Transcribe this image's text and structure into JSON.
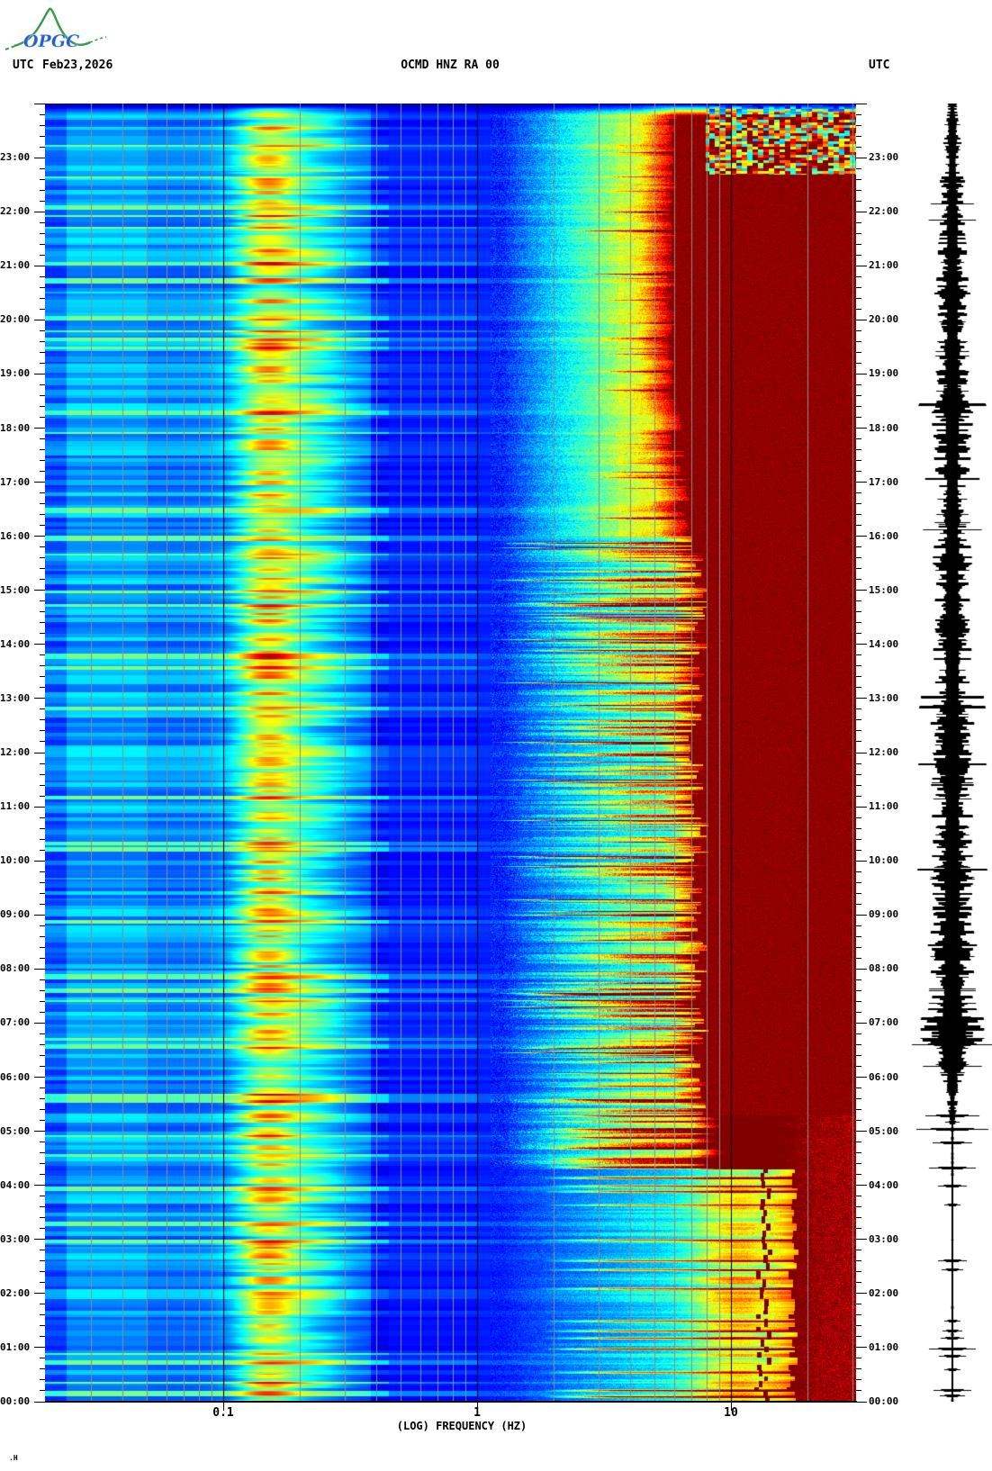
{
  "header": {
    "logo_text": "OPGC",
    "utc_left": "UTC",
    "date": "Feb23,2026",
    "title": "OCMD HNZ RA 00",
    "utc_right": "UTC"
  },
  "footer": {
    "mark": ".H"
  },
  "axes": {
    "x": {
      "label": "(LOG) FREQUENCY (HZ)",
      "ticks": [
        {
          "value": 0.1,
          "label": "0.1"
        },
        {
          "value": 1,
          "label": "1"
        },
        {
          "value": 10,
          "label": "10"
        }
      ]
    },
    "y": {
      "unit": "UTC",
      "hour_labels": [
        "00:00",
        "01:00",
        "02:00",
        "03:00",
        "04:00",
        "05:00",
        "06:00",
        "07:00",
        "08:00",
        "09:00",
        "10:00",
        "11:00",
        "12:00",
        "13:00",
        "14:00",
        "15:00",
        "16:00",
        "17:00",
        "18:00",
        "19:00",
        "20:00",
        "21:00",
        "22:00",
        "23:00"
      ],
      "minor_ticks_per_hour": 5
    }
  },
  "chart_data": {
    "type": "heatmap",
    "title": "OCMD HNZ RA 00",
    "date_utc": "Feb23,2026",
    "x_axis": {
      "label": "(LOG) FREQUENCY (HZ)",
      "scale": "log",
      "tick_values_hz": [
        0.1,
        1,
        10
      ],
      "range_hz": [
        0.02,
        31
      ],
      "minor_gridline_multiples": [
        2,
        3,
        4,
        5,
        6,
        7,
        8,
        9
      ],
      "major_gridlines_hz": [
        0.1,
        1,
        10
      ]
    },
    "y_axis": {
      "label": "UTC",
      "range_hours": [
        0,
        24
      ],
      "tick_interval_minutes": 60,
      "minor_tick_minutes": 12,
      "direction": "time increases downward-to-top (00:00 bottom, 24:00 top)"
    },
    "colormap": "jet",
    "colors": {
      "background": "#ffffff",
      "text": "#000000",
      "minor_grid": "#8c8c8c",
      "major_grid": "#000000",
      "waveform": "#000000",
      "saturated_red": "#940000",
      "logo_green": "#3a9a4a",
      "logo_blue": "#2b5bc8"
    },
    "features": {
      "low_band_hz": [
        0.02,
        0.1
      ],
      "microseism_peak_hz": 0.15,
      "secondary_peak_hz": 0.22,
      "quiet_valley_hz": [
        0.45,
        1.3
      ],
      "tremor_band_hz": [
        1.3,
        8
      ],
      "persistent_spectral_line_hz": 3.7,
      "night_cyan_band_hz": [
        8,
        13
      ],
      "night_red_wiggly_line_hz": 13.5,
      "saturation_edge_hz": {
        "night_00_04": 17,
        "dawn_04_05": 9.3,
        "day_05_16": 7.4,
        "evening_16_24": 5.8
      },
      "regimes": [
        {
          "utc": [
            0,
            4.3
          ],
          "desc": "quiet background with discrete events"
        },
        {
          "utc": [
            4.3,
            6
          ],
          "desc": "event swarm onset, mixed colors"
        },
        {
          "utc": [
            6,
            16
          ],
          "desc": "bursty tremor streaks 1.5-8 Hz, saturated above ~7.5 Hz"
        },
        {
          "utc": [
            16,
            24
          ],
          "desc": "continuous strong tremor, saturated above ~6 Hz, mottled top right"
        }
      ],
      "events_utc": {
        "night": [
          [
            0.1,
            1.0
          ],
          [
            0.22,
            0.9
          ],
          [
            0.55,
            0.6
          ],
          [
            0.98,
            0.95
          ],
          [
            1.18,
            0.7
          ],
          [
            1.32,
            0.7
          ],
          [
            1.5,
            0.6
          ],
          [
            2.1,
            0.55
          ],
          [
            2.45,
            0.6
          ],
          [
            2.62,
            0.7
          ],
          [
            3.0,
            0.6
          ],
          [
            3.65,
            0.5
          ],
          [
            3.9,
            0.6
          ],
          [
            4.0,
            0.7
          ],
          [
            4.15,
            0.8
          ],
          [
            4.35,
            1.0
          ],
          [
            4.5,
            0.8
          ],
          [
            4.7,
            0.8
          ],
          [
            4.9,
            0.9
          ],
          [
            5.05,
            0.95
          ],
          [
            5.3,
            0.8
          ],
          [
            5.6,
            0.7
          ],
          [
            5.85,
            0.7
          ]
        ],
        "day": [
          [
            6.45,
            0.95
          ],
          [
            7.3,
            0.9
          ],
          [
            7.55,
            1.0
          ],
          [
            9.0,
            0.8
          ],
          [
            9.9,
            0.85
          ],
          [
            10.75,
            0.9
          ],
          [
            11.5,
            0.85
          ],
          [
            12.2,
            0.9
          ],
          [
            13.3,
            0.95
          ],
          [
            14.1,
            0.9
          ],
          [
            15.2,
            0.95
          ],
          [
            15.8,
            1.0
          ]
        ],
        "evening": [
          [
            16.35,
            0.8
          ],
          [
            17.1,
            0.6
          ],
          [
            18.7,
            0.7
          ],
          [
            19.05,
            0.6
          ],
          [
            20.85,
            0.85
          ],
          [
            21.65,
            0.9
          ],
          [
            22.0,
            0.6
          ],
          [
            23.1,
            0.5
          ]
        ]
      }
    },
    "waveform": {
      "desc": "vertical seismogram trace, amplitude envelope vs UTC hour (0-1)",
      "envelope_utc_amp": [
        [
          0,
          0.1
        ],
        [
          0.3,
          0.05
        ],
        [
          1,
          0.06
        ],
        [
          2,
          0.05
        ],
        [
          3,
          0.05
        ],
        [
          3.9,
          0.06
        ],
        [
          4.2,
          0.1
        ],
        [
          4.5,
          0.09
        ],
        [
          5,
          0.11
        ],
        [
          5.5,
          0.14
        ],
        [
          6,
          0.35
        ],
        [
          6.3,
          0.55
        ],
        [
          6.6,
          0.85
        ],
        [
          7,
          0.92
        ],
        [
          7.4,
          0.75
        ],
        [
          8,
          0.6
        ],
        [
          8.5,
          0.72
        ],
        [
          9,
          0.58
        ],
        [
          9.5,
          0.65
        ],
        [
          10,
          0.55
        ],
        [
          10.5,
          0.62
        ],
        [
          11,
          0.52
        ],
        [
          11.5,
          0.6
        ],
        [
          12,
          0.55
        ],
        [
          12.5,
          0.62
        ],
        [
          13,
          0.52
        ],
        [
          13.5,
          0.58
        ],
        [
          14,
          0.52
        ],
        [
          14.5,
          0.6
        ],
        [
          15,
          0.5
        ],
        [
          15.5,
          0.55
        ],
        [
          16,
          0.48
        ],
        [
          16.5,
          0.52
        ],
        [
          17,
          0.45
        ],
        [
          17.5,
          0.5
        ],
        [
          18,
          0.55
        ],
        [
          18.3,
          0.62
        ],
        [
          18.6,
          0.5
        ],
        [
          19,
          0.45
        ],
        [
          19.4,
          0.52
        ],
        [
          19.8,
          0.42
        ],
        [
          20.2,
          0.48
        ],
        [
          20.6,
          0.55
        ],
        [
          21,
          0.4
        ],
        [
          21.3,
          0.48
        ],
        [
          21.6,
          0.35
        ],
        [
          22,
          0.42
        ],
        [
          22.3,
          0.3
        ],
        [
          22.6,
          0.36
        ],
        [
          23,
          0.25
        ],
        [
          23.3,
          0.32
        ],
        [
          23.6,
          0.22
        ],
        [
          24,
          0.15
        ]
      ],
      "spikes_utc_halfwidth": [
        [
          0.12,
          14
        ],
        [
          0.22,
          21
        ],
        [
          0.6,
          9
        ],
        [
          0.85,
          15
        ],
        [
          0.98,
          26
        ],
        [
          1.18,
          13
        ],
        [
          1.32,
          11
        ],
        [
          1.5,
          9
        ],
        [
          2.45,
          12
        ],
        [
          2.62,
          16
        ],
        [
          3.65,
          9
        ],
        [
          4.0,
          16
        ],
        [
          4.32,
          26
        ],
        [
          4.8,
          22
        ],
        [
          5.05,
          40
        ],
        [
          5.3,
          30
        ],
        [
          6.6,
          45
        ]
      ]
    }
  }
}
